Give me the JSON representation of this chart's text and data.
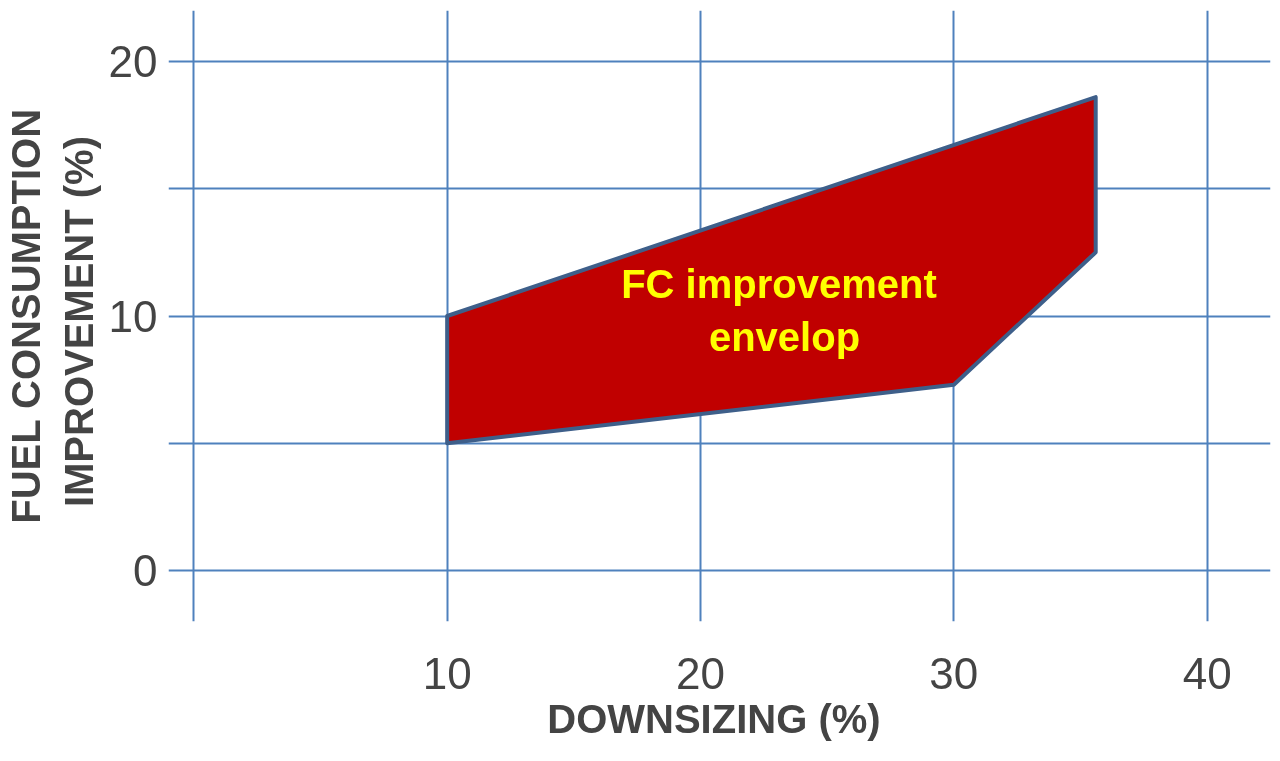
{
  "chart_data": {
    "type": "area",
    "xlabel": "DOWNSIZING  (%)",
    "ylabel": "FUEL CONSUMPTION\nIMPROVEMENT  (%)",
    "xlim": [
      -1,
      42.5
    ],
    "ylim": [
      -2,
      22
    ],
    "xticks": [
      {
        "value": 0,
        "label": null
      },
      10,
      20,
      30,
      40
    ],
    "yticks": [
      0,
      {
        "value": 5,
        "label": null
      },
      10,
      {
        "value": 15,
        "label": null
      },
      20
    ],
    "grid": true,
    "series": [
      {
        "color": "#c00000",
        "x": [
          10,
          35.6,
          35.6,
          30,
          10,
          10
        ],
        "values": [
          10,
          18.6,
          12.5,
          7.3,
          5,
          10
        ]
      }
    ],
    "annotations": [
      "FC  improvement\nenvelop"
    ]
  }
}
